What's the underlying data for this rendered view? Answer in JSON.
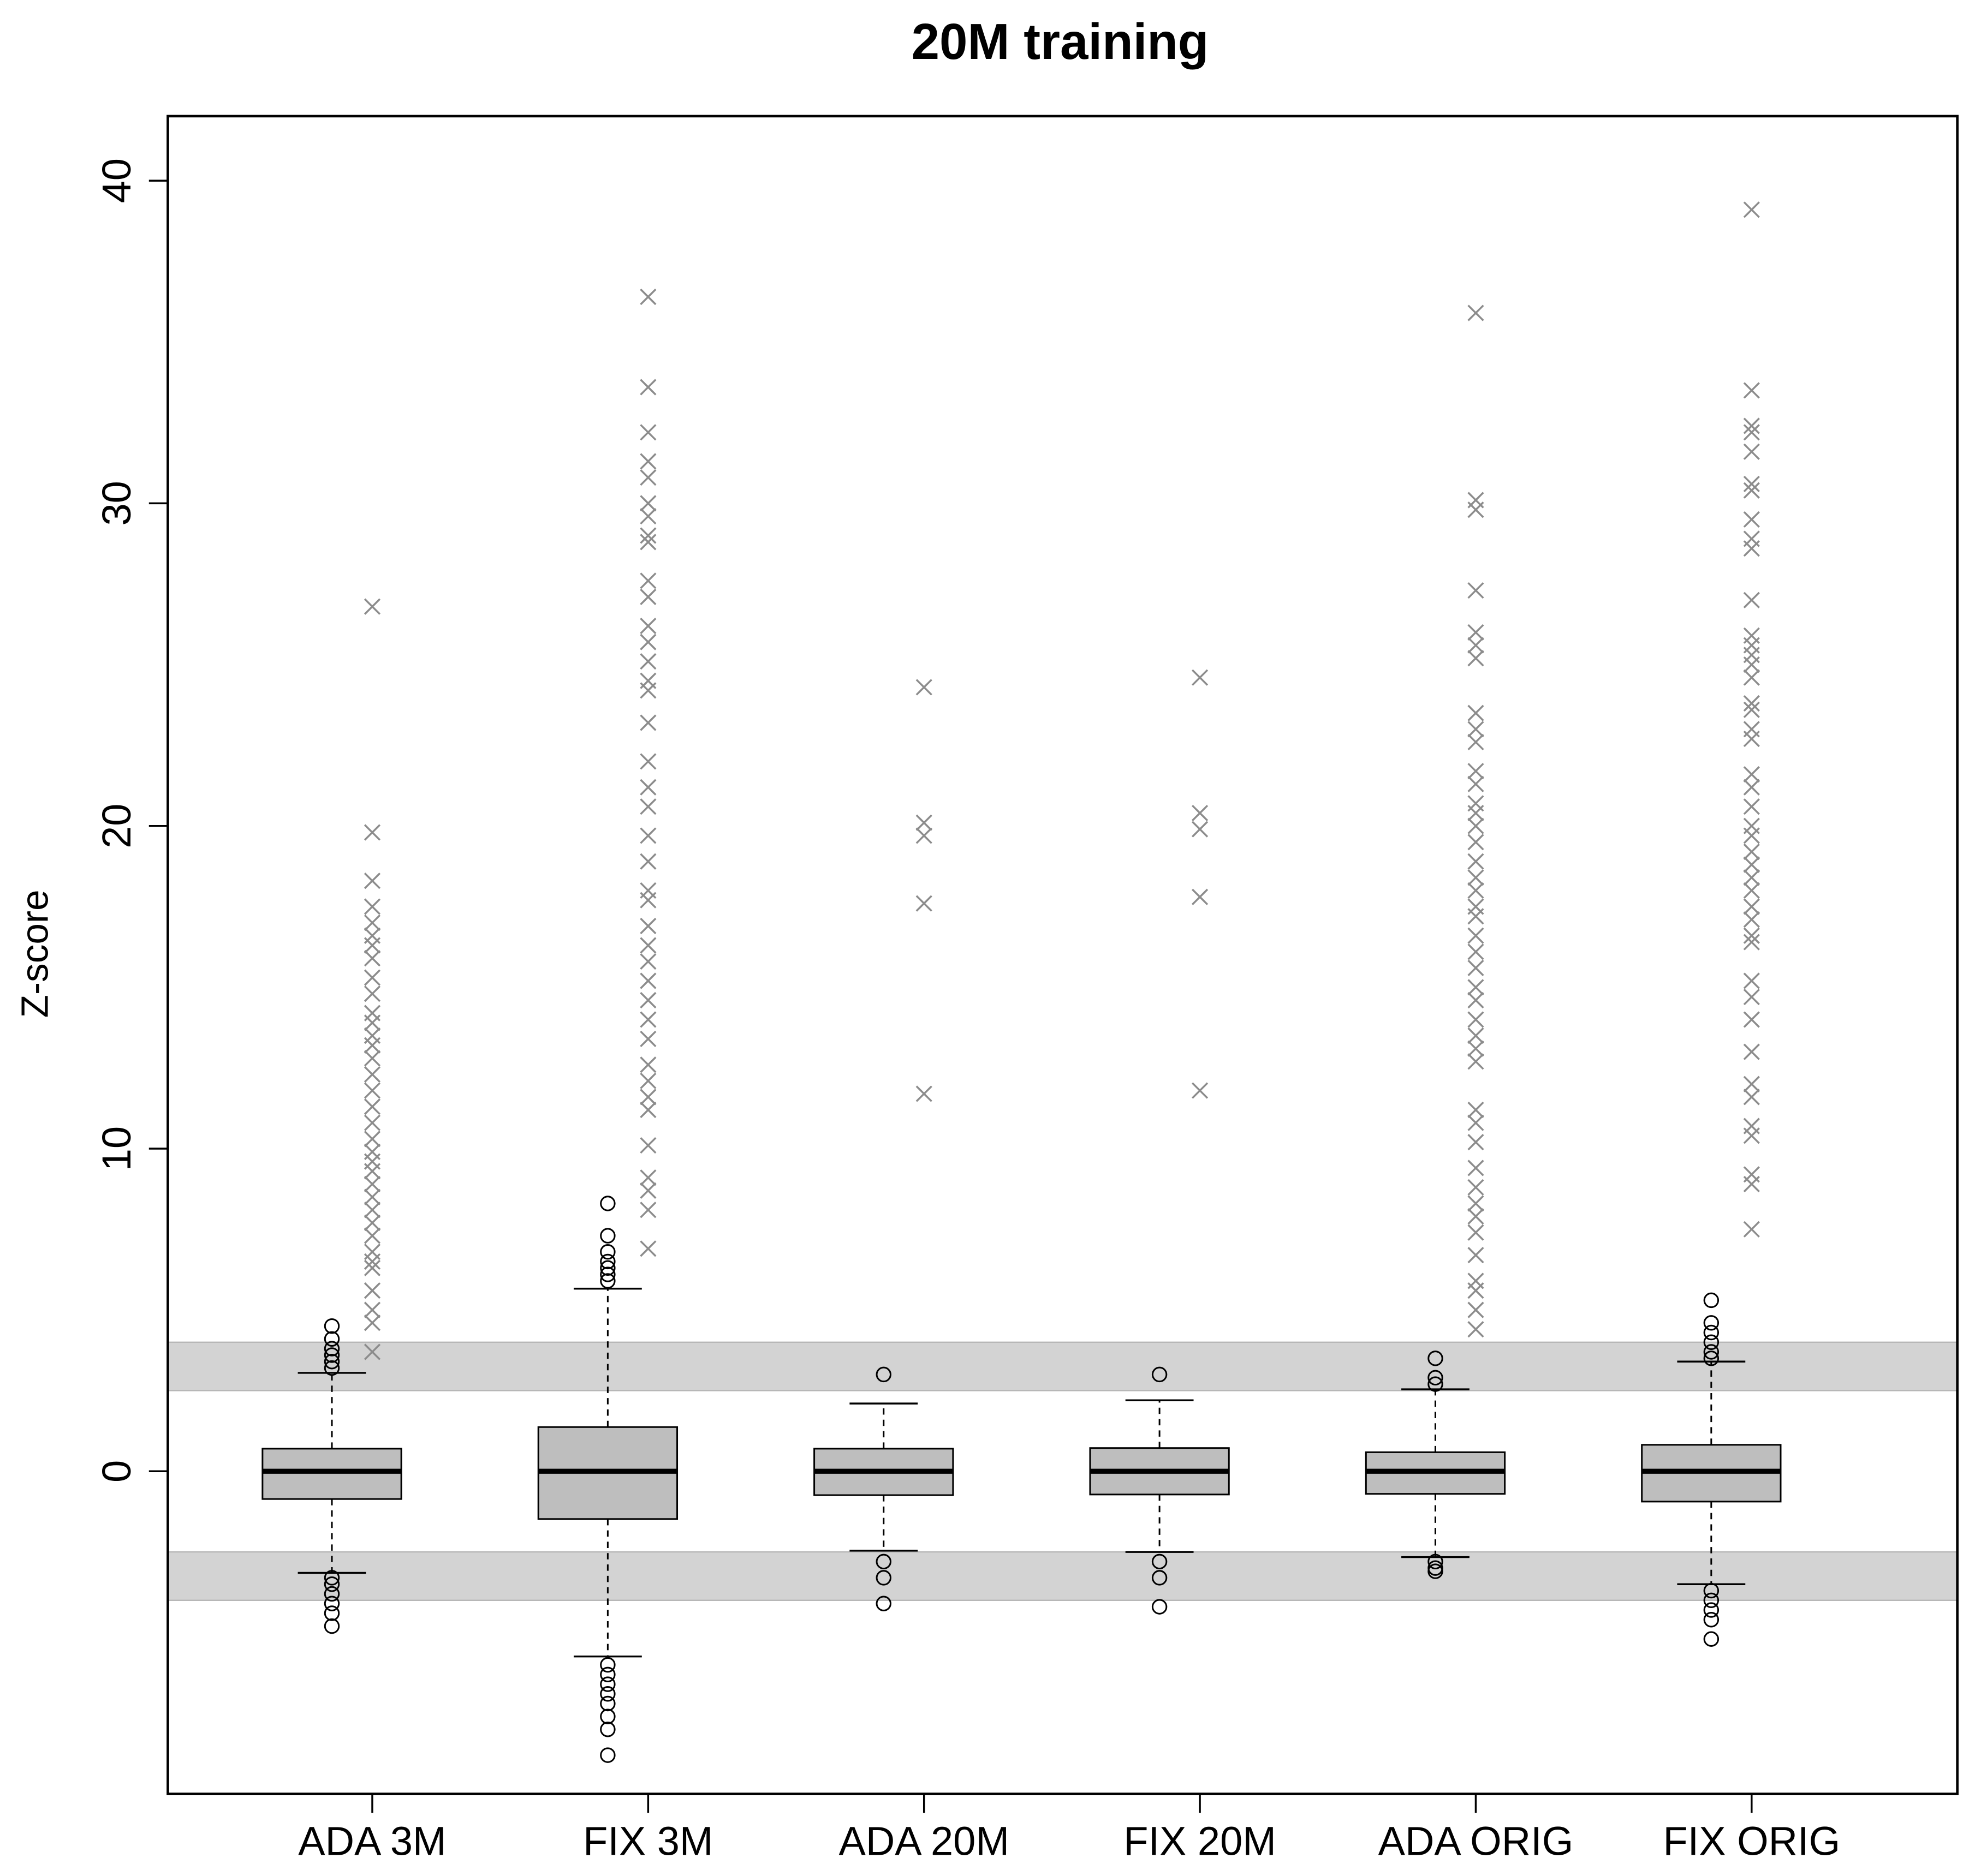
{
  "chart_data": {
    "type": "boxplot",
    "title": "20M training",
    "ylabel": "Z-score",
    "categories": [
      "ADA 3M",
      "FIX 3M",
      "ADA 20M",
      "FIX 20M",
      "ADA ORIG",
      "FIX ORIG"
    ],
    "boxes": [
      {
        "q1": -0.86,
        "median": 0,
        "q3": 0.7,
        "whisker_low": -3.15,
        "whisker_high": 3.05,
        "outliers": [
          3.2,
          3.4,
          3.6,
          3.8,
          4.1,
          4.5,
          -3.3,
          -3.5,
          -3.8,
          -4.1,
          -4.4,
          -4.8
        ]
      },
      {
        "q1": -1.48,
        "median": 0,
        "q3": 1.37,
        "whisker_low": -5.74,
        "whisker_high": 5.66,
        "outliers": [
          5.9,
          6.1,
          6.3,
          6.5,
          6.8,
          7.3,
          8.3,
          -6.0,
          -6.3,
          -6.6,
          -6.9,
          -7.2,
          -7.6,
          -8.0,
          -8.8
        ]
      },
      {
        "q1": -0.74,
        "median": 0,
        "q3": 0.7,
        "whisker_low": -2.46,
        "whisker_high": 2.1,
        "outliers": [
          3.0,
          -2.8,
          -3.3,
          -4.1
        ]
      },
      {
        "q1": -0.72,
        "median": 0,
        "q3": 0.72,
        "whisker_low": -2.5,
        "whisker_high": 2.2,
        "outliers": [
          3.0,
          -2.8,
          -3.3,
          -4.2
        ]
      },
      {
        "q1": -0.7,
        "median": 0,
        "q3": 0.59,
        "whisker_low": -2.66,
        "whisker_high": 2.54,
        "outliers": [
          2.7,
          2.9,
          3.5,
          -2.8,
          -3.0,
          -3.1
        ]
      },
      {
        "q1": -0.94,
        "median": 0,
        "q3": 0.82,
        "whisker_low": -3.5,
        "whisker_high": 3.4,
        "outliers": [
          3.5,
          3.7,
          4.0,
          4.3,
          4.6,
          5.3,
          -3.7,
          -4.0,
          -4.3,
          -4.6,
          -5.2
        ]
      }
    ],
    "crosses": [
      [
        26.8,
        19.8,
        18.3,
        17.5,
        17.0,
        16.6,
        16.3,
        15.9,
        15.3,
        14.8,
        14.2,
        13.9,
        13.5,
        13.2,
        12.8,
        12.3,
        11.8,
        11.3,
        10.8,
        10.3,
        9.9,
        9.6,
        9.3,
        8.9,
        8.5,
        8.1,
        7.7,
        7.3,
        6.8,
        6.5,
        6.3,
        5.6,
        5.0,
        4.6,
        3.7
      ],
      [
        36.4,
        33.6,
        32.2,
        31.3,
        30.8,
        30.0,
        29.6,
        29.0,
        28.8,
        27.6,
        27.1,
        26.2,
        25.7,
        25.1,
        24.5,
        24.2,
        23.2,
        22.0,
        21.2,
        20.6,
        19.7,
        18.9,
        18.0,
        17.7,
        16.9,
        16.3,
        15.8,
        15.2,
        14.6,
        14.0,
        13.4,
        12.6,
        12.1,
        11.6,
        11.2,
        10.1,
        9.1,
        8.7,
        8.1,
        6.9
      ],
      [
        24.3,
        20.1,
        19.7,
        17.6,
        11.7
      ],
      [
        24.6,
        20.4,
        19.9,
        17.8,
        11.8
      ],
      [
        35.9,
        30.1,
        29.8,
        27.3,
        26.0,
        25.6,
        25.2,
        23.5,
        23.0,
        22.6,
        21.7,
        21.3,
        20.7,
        20.4,
        20.0,
        19.5,
        18.9,
        18.4,
        18.0,
        17.5,
        17.2,
        16.6,
        16.1,
        15.6,
        15.0,
        14.6,
        14.0,
        13.5,
        13.1,
        12.7,
        11.2,
        10.8,
        10.2,
        9.4,
        8.8,
        8.3,
        7.9,
        7.4,
        6.7,
        5.9,
        5.6,
        5.0,
        4.4
      ],
      [
        39.1,
        33.5,
        32.4,
        32.2,
        31.6,
        30.6,
        30.4,
        29.5,
        28.9,
        28.6,
        27.0,
        25.9,
        25.6,
        25.3,
        25.0,
        24.6,
        23.8,
        23.6,
        23.0,
        22.7,
        21.6,
        21.2,
        20.6,
        20.0,
        19.7,
        19.2,
        18.8,
        18.4,
        18.0,
        17.5,
        17.1,
        16.6,
        16.4,
        15.2,
        14.7,
        14.0,
        13.0,
        12.0,
        11.6,
        10.7,
        10.4,
        9.2,
        8.9,
        7.5
      ]
    ],
    "bands": [
      {
        "from": 2.5,
        "to": 4
      },
      {
        "from": -4,
        "to": -2.5
      }
    ],
    "ylim": [
      -10,
      42
    ],
    "yticks": [
      0,
      10,
      20,
      30,
      40
    ],
    "box_color": "#bebebe",
    "cross_color": "#8c8c8c",
    "band_color": "#d3d3d3"
  }
}
